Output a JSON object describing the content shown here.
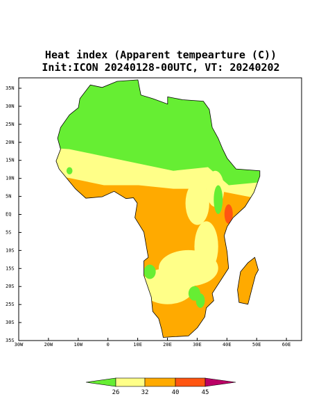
{
  "title": [
    "Heat index (Apparent tempearture (C))",
    "Init:ICON 20240128-00UTC, VT: 20240202"
  ],
  "lat_ticks": [
    "35N",
    "30N",
    "25N",
    "20N",
    "15N",
    "10N",
    "5N",
    "EQ",
    "5S",
    "10S",
    "15S",
    "20S",
    "25S",
    "30S",
    "35S"
  ],
  "lon_ticks": [
    "30W",
    "20W",
    "10W",
    "0",
    "10E",
    "20E",
    "30E",
    "40E",
    "50E",
    "60E"
  ],
  "colorbar": {
    "labels": [
      "26",
      "32",
      "40",
      "45"
    ],
    "colors": [
      "#66ee33",
      "#ffff88",
      "#ffaa00",
      "#ff5511",
      "#bb0066"
    ]
  }
}
